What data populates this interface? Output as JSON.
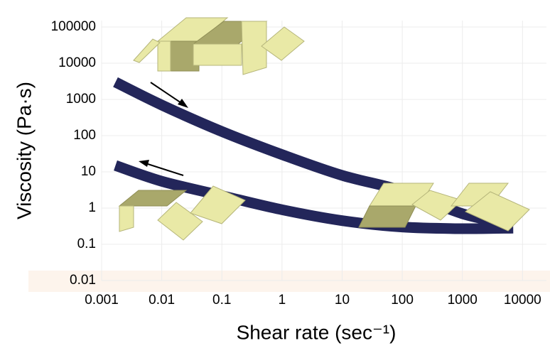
{
  "chart_data": {
    "type": "line",
    "xlabel": "Shear rate (sec⁻¹)",
    "ylabel": "Viscosity (Pa·s)",
    "xscale": "log",
    "yscale": "log",
    "grid": true,
    "xlim": [
      0.001,
      25000
    ],
    "ylim": [
      0.01,
      150000
    ],
    "xticks": [
      0.001,
      0.01,
      0.1,
      1,
      10,
      100,
      1000,
      10000
    ],
    "yticks": [
      0.01,
      0.1,
      1,
      10,
      100,
      1000,
      10000,
      100000
    ],
    "series": [
      {
        "color": "#23265a",
        "x": [
          0.0017,
          0.01,
          0.1,
          1,
          10,
          100,
          1000,
          7000
        ],
        "values": [
          3000,
          700,
          130,
          30,
          8,
          3,
          0.7,
          0.35
        ]
      },
      {
        "color": "#23265a",
        "x": [
          0.0017,
          0.01,
          0.1,
          1,
          10,
          100,
          1000,
          7000
        ],
        "values": [
          15,
          5.5,
          2.2,
          0.9,
          0.45,
          0.3,
          0.27,
          0.28
        ]
      }
    ]
  }
}
